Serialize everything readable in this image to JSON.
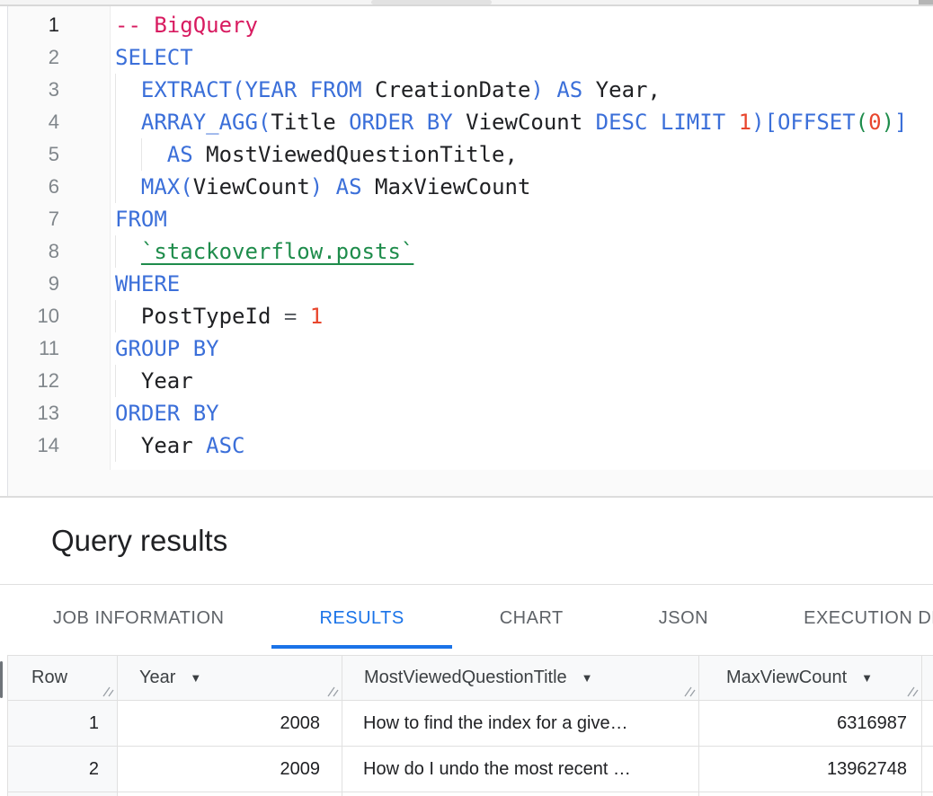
{
  "editor": {
    "lines": [
      {
        "num": "1",
        "active": true,
        "ind": 0,
        "tokens": [
          [
            "-- BigQuery",
            "com"
          ]
        ]
      },
      {
        "num": "2",
        "ind": 0,
        "tokens": [
          [
            "SELECT",
            "kw"
          ]
        ]
      },
      {
        "num": "3",
        "ind": 1,
        "tokens": [
          [
            "  ",
            ""
          ],
          [
            "EXTRACT",
            "kw"
          ],
          [
            "(",
            "p1"
          ],
          [
            "YEAR",
            "kw"
          ],
          [
            " ",
            ""
          ],
          [
            "FROM",
            "kw"
          ],
          [
            " CreationDate",
            ""
          ],
          [
            ")",
            "p1"
          ],
          [
            " ",
            ""
          ],
          [
            "AS",
            "kw"
          ],
          [
            " Year,",
            ""
          ]
        ]
      },
      {
        "num": "4",
        "ind": 1,
        "tokens": [
          [
            "  ",
            ""
          ],
          [
            "ARRAY_AGG",
            "kw"
          ],
          [
            "(",
            "p1"
          ],
          [
            "Title ",
            ""
          ],
          [
            "ORDER BY",
            "kw"
          ],
          [
            " ViewCount ",
            ""
          ],
          [
            "DESC",
            "kw"
          ],
          [
            " ",
            ""
          ],
          [
            "LIMIT",
            "kw"
          ],
          [
            " ",
            ""
          ],
          [
            "1",
            "num"
          ],
          [
            ")",
            "p1"
          ],
          [
            "[",
            "p1"
          ],
          [
            "OFFSET",
            "kw"
          ],
          [
            "(",
            "p2"
          ],
          [
            "0",
            "num"
          ],
          [
            ")",
            "p2"
          ],
          [
            "]",
            "p1"
          ]
        ]
      },
      {
        "num": "5",
        "ind": 2,
        "tokens": [
          [
            "    ",
            ""
          ],
          [
            "AS",
            "kw"
          ],
          [
            " MostViewedQuestionTitle,",
            ""
          ]
        ]
      },
      {
        "num": "6",
        "ind": 1,
        "tokens": [
          [
            "  ",
            ""
          ],
          [
            "MAX",
            "kw"
          ],
          [
            "(",
            "p1"
          ],
          [
            "ViewCount",
            ""
          ],
          [
            ")",
            "p1"
          ],
          [
            " ",
            ""
          ],
          [
            "AS",
            "kw"
          ],
          [
            " MaxViewCount",
            ""
          ]
        ]
      },
      {
        "num": "7",
        "ind": 0,
        "tokens": [
          [
            "FROM",
            "kw"
          ]
        ]
      },
      {
        "num": "8",
        "ind": 1,
        "tokens": [
          [
            "  ",
            ""
          ],
          [
            "`stackoverflow.posts`",
            "lnk"
          ]
        ]
      },
      {
        "num": "9",
        "ind": 0,
        "tokens": [
          [
            "WHERE",
            "kw"
          ]
        ]
      },
      {
        "num": "10",
        "ind": 1,
        "tokens": [
          [
            "  PostTypeId ",
            ""
          ],
          [
            "=",
            "op"
          ],
          [
            " ",
            ""
          ],
          [
            "1",
            "num"
          ]
        ]
      },
      {
        "num": "11",
        "ind": 0,
        "tokens": [
          [
            "GROUP BY",
            "kw"
          ]
        ]
      },
      {
        "num": "12",
        "ind": 1,
        "tokens": [
          [
            "  Year",
            ""
          ]
        ]
      },
      {
        "num": "13",
        "ind": 0,
        "tokens": [
          [
            "ORDER BY",
            "kw"
          ]
        ]
      },
      {
        "num": "14",
        "ind": 1,
        "tokens": [
          [
            "  Year ",
            ""
          ],
          [
            "ASC",
            "kw"
          ]
        ]
      }
    ]
  },
  "results_panel": {
    "title": "Query results",
    "tabs": [
      {
        "label": "JOB INFORMATION",
        "active": false
      },
      {
        "label": "RESULTS",
        "active": true
      },
      {
        "label": "CHART",
        "active": false
      },
      {
        "label": "JSON",
        "active": false
      },
      {
        "label": "EXECUTION DETAILS",
        "active": false
      }
    ],
    "table": {
      "columns": [
        {
          "label": "Row",
          "sortable": false
        },
        {
          "label": "Year",
          "sortable": true
        },
        {
          "label": "MostViewedQuestionTitle",
          "sortable": true
        },
        {
          "label": "MaxViewCount",
          "sortable": true
        }
      ],
      "rows": [
        [
          "1",
          "2008",
          "How to find the index for a give…",
          "6316987"
        ],
        [
          "2",
          "2009",
          "How do I undo the most recent …",
          "13962748"
        ]
      ]
    }
  },
  "colors": {
    "keyword": "#3b6fd9",
    "comment": "#d81b60",
    "number": "#e8462d",
    "table_reference": "#1e8c4b",
    "accent_blue": "#1a73e8",
    "header_bg": "#f8f9fa"
  }
}
